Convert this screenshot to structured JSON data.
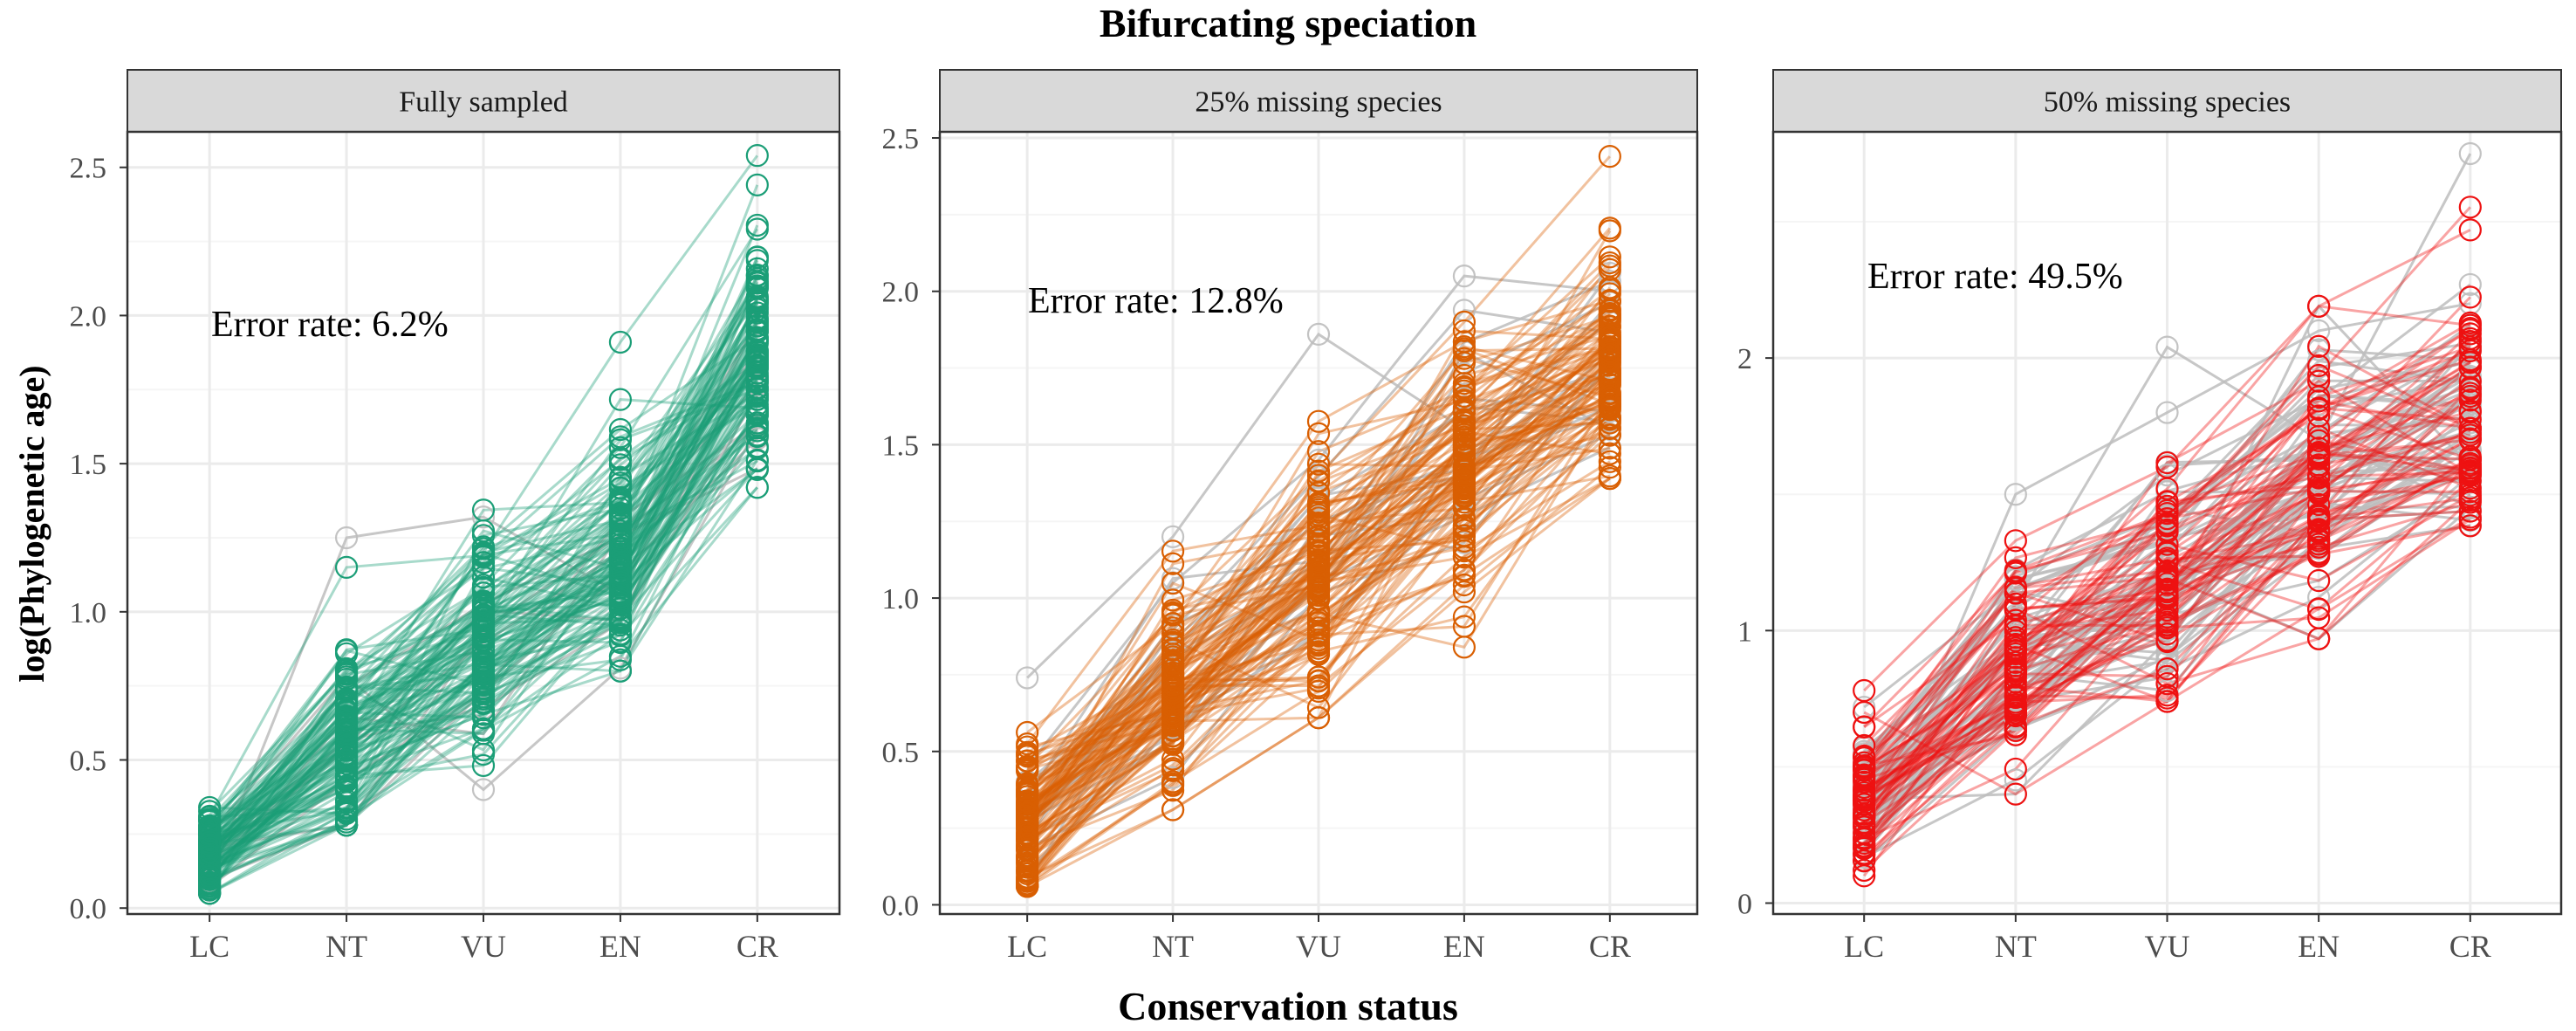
{
  "figure": {
    "title": "Bifurcating speciation",
    "xlabel": "Conservation status",
    "ylabel": "log(Phylogenetic age)"
  },
  "colors": {
    "strip_bg": "#d9d9d9",
    "panel_border": "#333333",
    "grid_major": "#ebebeb",
    "grid_minor": "#f5f5f5",
    "tick_text": "#4d4d4d",
    "misclassified": "#bdbdbd",
    "green": "#1b9e77",
    "orange": "#d95f02",
    "red": "#ee1111"
  },
  "chart_data": [
    {
      "type": "line",
      "facet": "Fully sampled",
      "annotation": "Error rate: 6.2%",
      "categories": [
        "LC",
        "NT",
        "VU",
        "EN",
        "CR"
      ],
      "ylim": [
        -0.02,
        2.62
      ],
      "yticks": [
        0.0,
        0.5,
        1.0,
        1.5,
        2.0,
        2.5
      ],
      "ytick_labels": [
        "0.0",
        "0.5",
        "1.0",
        "1.5",
        "2.0",
        "2.5"
      ],
      "color": "#1b9e77",
      "n_trajectories": 120,
      "error_rate": 0.062,
      "category_means": [
        0.18,
        0.55,
        0.88,
        1.18,
        1.85
      ],
      "category_ranges": [
        [
          0.05,
          0.46
        ],
        [
          0.28,
          1.25
        ],
        [
          0.4,
          1.39
        ],
        [
          0.8,
          1.91
        ],
        [
          1.42,
          2.54
        ]
      ],
      "highlighted_series": [
        {
          "values": [
            0.09,
            1.25,
            1.32,
            1.06,
            1.98
          ],
          "misclassified": true
        },
        {
          "values": [
            0.31,
            1.15,
            1.19,
            1.45,
            2.1
          ],
          "misclassified": false
        },
        {
          "values": [
            0.25,
            0.78,
            0.4,
            0.81,
            1.62
          ],
          "misclassified": true
        },
        {
          "values": [
            0.12,
            0.55,
            1.2,
            1.91,
            2.54
          ],
          "misclassified": false
        },
        {
          "values": [
            0.05,
            0.3,
            0.6,
            0.85,
            1.42
          ],
          "misclassified": false
        }
      ]
    },
    {
      "type": "line",
      "facet": "25% missing species",
      "annotation": "Error rate: 12.8%",
      "categories": [
        "LC",
        "NT",
        "VU",
        "EN",
        "CR"
      ],
      "ylim": [
        -0.03,
        2.52
      ],
      "yticks": [
        0.0,
        0.5,
        1.0,
        1.5,
        2.0,
        2.5
      ],
      "ytick_labels": [
        "0.0",
        "0.5",
        "1.0",
        "1.5",
        "2.0",
        "2.5"
      ],
      "color": "#d95f02",
      "n_trajectories": 120,
      "error_rate": 0.128,
      "category_means": [
        0.28,
        0.72,
        1.08,
        1.45,
        1.78
      ],
      "category_ranges": [
        [
          0.06,
          0.74
        ],
        [
          0.31,
          1.24
        ],
        [
          0.61,
          1.86
        ],
        [
          0.84,
          2.05
        ],
        [
          1.39,
          2.44
        ]
      ],
      "highlighted_series": [
        {
          "values": [
            0.74,
            1.2,
            1.86,
            1.55,
            1.9
          ],
          "misclassified": true
        },
        {
          "values": [
            0.45,
            1.05,
            1.45,
            2.05,
            2.0
          ],
          "misclassified": true
        },
        {
          "values": [
            0.3,
            0.95,
            1.4,
            1.9,
            2.44
          ],
          "misclassified": false
        },
        {
          "values": [
            0.15,
            0.55,
            0.95,
            0.84,
            1.62
          ],
          "misclassified": false
        },
        {
          "values": [
            0.06,
            0.31,
            0.61,
            1.02,
            1.39
          ],
          "misclassified": false
        }
      ]
    },
    {
      "type": "line",
      "facet": "50% missing species",
      "annotation": "Error rate: 49.5%",
      "categories": [
        "LC",
        "NT",
        "VU",
        "EN",
        "CR"
      ],
      "ylim": [
        -0.04,
        2.83
      ],
      "yticks": [
        0,
        1,
        2
      ],
      "ytick_labels": [
        "0",
        "1",
        "2"
      ],
      "color": "#ee1111",
      "n_trajectories": 120,
      "error_rate": 0.495,
      "category_means": [
        0.38,
        0.88,
        1.18,
        1.55,
        1.78
      ],
      "category_ranges": [
        [
          0.1,
          0.78
        ],
        [
          0.4,
          1.5
        ],
        [
          0.74,
          2.04
        ],
        [
          0.97,
          2.19
        ],
        [
          1.38,
          2.75
        ]
      ],
      "highlighted_series": [
        {
          "values": [
            0.45,
            1.1,
            2.04,
            1.7,
            2.75
          ],
          "misclassified": true
        },
        {
          "values": [
            0.2,
            1.5,
            1.8,
            2.1,
            2.2
          ],
          "misclassified": true
        },
        {
          "values": [
            0.78,
            1.33,
            1.6,
            2.19,
            2.47
          ],
          "misclassified": false
        },
        {
          "values": [
            0.7,
            0.4,
            0.74,
            1.08,
            1.55
          ],
          "misclassified": false
        },
        {
          "values": [
            0.3,
            0.85,
            1.2,
            0.97,
            1.45
          ],
          "misclassified": true
        }
      ]
    }
  ]
}
